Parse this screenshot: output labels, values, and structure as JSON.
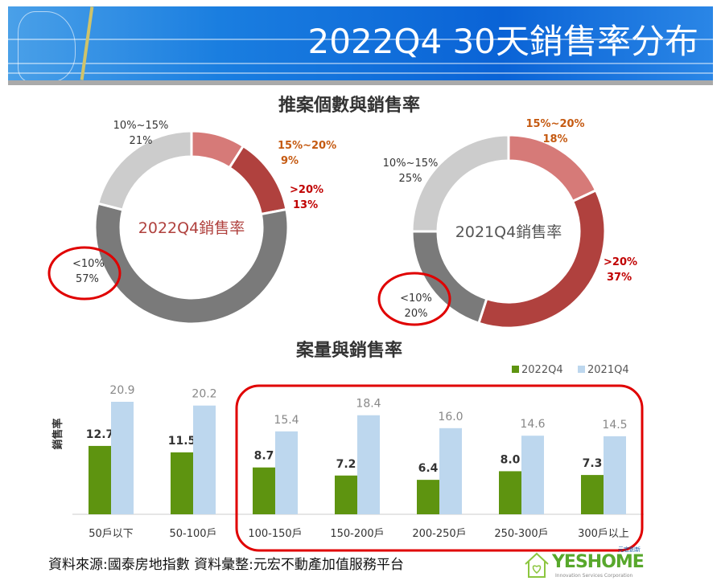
{
  "title": "2022Q4 30天銷售率分布",
  "footer": "資料來源:國泰房地指數   資料彙整:元宏不動產加值服務平台",
  "logo": {
    "text": "YESHOME",
    "sub": "Innovation Services Corporation",
    "cn": "元宏創新"
  },
  "chart_data": [
    {
      "type": "pie",
      "title": "推案個數與銷售率",
      "center_label": "2022Q4銷售率",
      "slices": [
        {
          "label": "15%~20%",
          "value": 9,
          "color": "#d67a78"
        },
        {
          "label": ">20%",
          "value": 13,
          "color": "#b0413e"
        },
        {
          "label": "<10%",
          "value": 57,
          "color": "#7a7a7a"
        },
        {
          "label": "10%~15%",
          "value": 21,
          "color": "#cccccc"
        }
      ]
    },
    {
      "type": "pie",
      "center_label": "2021Q4銷售率",
      "slices": [
        {
          "label": "15%~20%",
          "value": 18,
          "color": "#d67a78"
        },
        {
          "label": ">20%",
          "value": 37,
          "color": "#b0413e"
        },
        {
          "label": "<10%",
          "value": 20,
          "color": "#7a7a7a"
        },
        {
          "label": "10%~15%",
          "value": 25,
          "color": "#cccccc"
        }
      ]
    },
    {
      "type": "bar",
      "title": "案量與銷售率",
      "ylabel": "銷售率",
      "categories": [
        "50戶以下",
        "50-100戶",
        "100-150戶",
        "150-200戶",
        "200-250戶",
        "250-300戶",
        "300戶以上"
      ],
      "series": [
        {
          "name": "2022Q4",
          "color": "#5e9410",
          "values": [
            12.7,
            11.5,
            8.7,
            7.2,
            6.4,
            8.0,
            7.3
          ]
        },
        {
          "name": "2021Q4",
          "color": "#bdd7ee",
          "values": [
            20.9,
            20.2,
            15.4,
            18.4,
            16.0,
            14.6,
            14.5
          ]
        }
      ],
      "ylim": [
        0,
        22
      ]
    }
  ]
}
